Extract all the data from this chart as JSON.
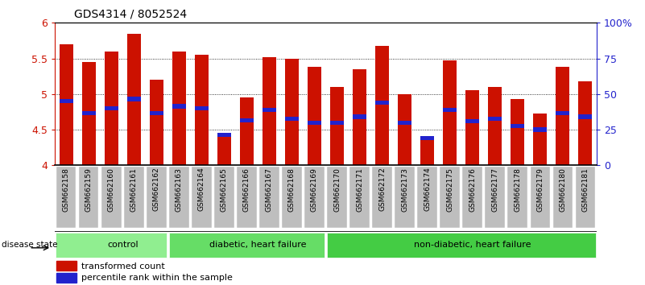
{
  "title": "GDS4314 / 8052524",
  "samples": [
    "GSM662158",
    "GSM662159",
    "GSM662160",
    "GSM662161",
    "GSM662162",
    "GSM662163",
    "GSM662164",
    "GSM662165",
    "GSM662166",
    "GSM662167",
    "GSM662168",
    "GSM662169",
    "GSM662170",
    "GSM662171",
    "GSM662172",
    "GSM662173",
    "GSM662174",
    "GSM662175",
    "GSM662176",
    "GSM662177",
    "GSM662178",
    "GSM662179",
    "GSM662180",
    "GSM662181"
  ],
  "bar_heights": [
    5.7,
    5.45,
    5.6,
    5.85,
    5.2,
    5.6,
    5.55,
    4.43,
    4.95,
    5.52,
    5.5,
    5.38,
    5.1,
    5.35,
    5.68,
    5.0,
    4.38,
    5.47,
    5.05,
    5.1,
    4.93,
    4.73,
    5.38,
    5.18
  ],
  "percentile_values": [
    4.9,
    4.73,
    4.8,
    4.93,
    4.73,
    4.83,
    4.8,
    4.43,
    4.63,
    4.78,
    4.65,
    4.6,
    4.6,
    4.68,
    4.88,
    4.6,
    4.38,
    4.78,
    4.62,
    4.65,
    4.55,
    4.5,
    4.73,
    4.68
  ],
  "groups": [
    {
      "label": "control",
      "start": 0,
      "end": 5,
      "color": "#90EE90"
    },
    {
      "label": "diabetic, heart failure",
      "start": 5,
      "end": 12,
      "color": "#66DD66"
    },
    {
      "label": "non-diabetic, heart failure",
      "start": 12,
      "end": 24,
      "color": "#44CC44"
    }
  ],
  "ylim": [
    4.0,
    6.0
  ],
  "yticks": [
    4.0,
    4.5,
    5.0,
    5.5,
    6.0
  ],
  "bar_color": "#CC1100",
  "marker_color": "#2222CC",
  "bg_color": "#BEBEBE",
  "left_label_color": "#CC1100",
  "right_label_color": "#2222CC",
  "pct_labels": [
    "0",
    "25",
    "50",
    "75",
    "100%"
  ]
}
